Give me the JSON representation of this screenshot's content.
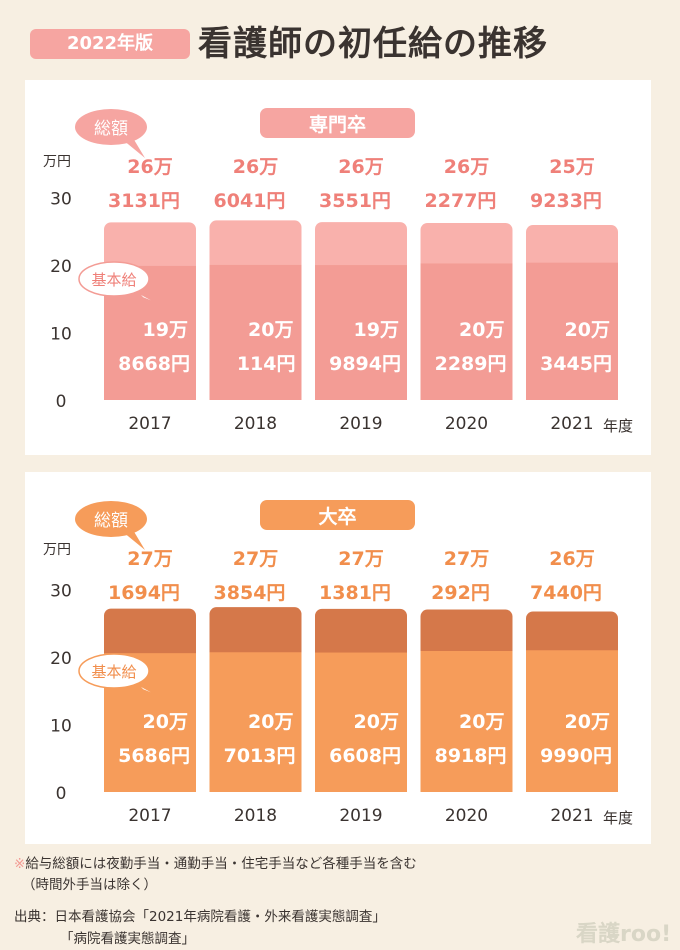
{
  "header": {
    "badge": "2022年版",
    "title": "看護師の初任給の推移"
  },
  "chart_data": [
    {
      "type": "bar",
      "title": "専門卒",
      "categories": [
        "2017",
        "2018",
        "2019",
        "2020",
        "2021"
      ],
      "xlabel": "年度",
      "ylabel": "万円",
      "ylim": [
        0,
        30
      ],
      "yticks": [
        "0",
        "10",
        "20",
        "30"
      ],
      "legend": [
        "総額",
        "基本給"
      ],
      "series": [
        {
          "name": "基本給",
          "values": [
            19.8668,
            20.0114,
            19.9894,
            20.2289,
            20.3445
          ]
        },
        {
          "name": "総額",
          "values": [
            26.3131,
            26.6041,
            26.3551,
            26.2277,
            25.9233
          ]
        }
      ],
      "labels_total": [
        [
          "26万",
          "3131円"
        ],
        [
          "26万",
          "6041円"
        ],
        [
          "26万",
          "3551円"
        ],
        [
          "26万",
          "2277円"
        ],
        [
          "25万",
          "9233円"
        ]
      ],
      "labels_base": [
        [
          "19万",
          "8668円"
        ],
        [
          "20万",
          "114円"
        ],
        [
          "19万",
          "9894円"
        ],
        [
          "20万",
          "2289円"
        ],
        [
          "20万",
          "3445円"
        ]
      ],
      "colors": {
        "title_bg": "#f6a5a1",
        "title_text": "#ffffff",
        "total": "#f9b1ac",
        "base": "#f39c95",
        "label": "#ef8079",
        "bubble_total": "#f6a5a1",
        "bubble_base_stroke": "#f39c95",
        "bubble_base_text": "#ef8079"
      }
    },
    {
      "type": "bar",
      "title": "大卒",
      "categories": [
        "2017",
        "2018",
        "2019",
        "2020",
        "2021"
      ],
      "xlabel": "年度",
      "ylabel": "万円",
      "ylim": [
        0,
        30
      ],
      "yticks": [
        "0",
        "10",
        "20",
        "30"
      ],
      "legend": [
        "総額",
        "基本給"
      ],
      "series": [
        {
          "name": "基本給",
          "values": [
            20.5686,
            20.7013,
            20.6608,
            20.8918,
            20.999
          ]
        },
        {
          "name": "総額",
          "values": [
            27.1694,
            27.3854,
            27.1381,
            27.0292,
            26.744
          ]
        }
      ],
      "labels_total": [
        [
          "27万",
          "1694円"
        ],
        [
          "27万",
          "3854円"
        ],
        [
          "27万",
          "1381円"
        ],
        [
          "27万",
          "292円"
        ],
        [
          "26万",
          "7440円"
        ]
      ],
      "labels_base": [
        [
          "20万",
          "5686円"
        ],
        [
          "20万",
          "7013円"
        ],
        [
          "20万",
          "6608円"
        ],
        [
          "20万",
          "8918円"
        ],
        [
          "20万",
          "9990円"
        ]
      ],
      "colors": {
        "title_bg": "#f69c5a",
        "title_text": "#ffffff",
        "total": "#d5784a",
        "base": "#f69c5a",
        "label": "#f18e4c",
        "bubble_total": "#f69c5a",
        "bubble_base_stroke": "#f69c5a",
        "bubble_base_text": "#f18e4c"
      }
    }
  ],
  "notes": {
    "mark": "※",
    "line1": "給与総額には夜勤手当・通勤手当・住宅手当など各種手当を含む",
    "line2": "（時間外手当は除く）",
    "source1": "出典：日本看護協会「2021年病院看護・外来看護実態調査」",
    "source2": "「病院看護実態調査」"
  },
  "logo": "看護roo!"
}
